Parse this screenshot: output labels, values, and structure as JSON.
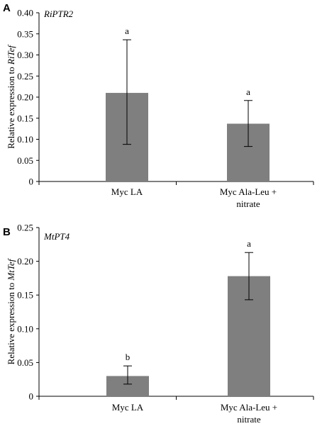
{
  "chart_data": [
    {
      "type": "bar",
      "panel_label": "A",
      "title": "RiPTR2",
      "ylabel_prefix": "Relative  expression  to ",
      "ylabel_gene": "RiTef",
      "categories": [
        [
          "Myc LA"
        ],
        [
          "Myc Ala-Leu  +",
          "nitrate"
        ]
      ],
      "values": [
        0.21,
        0.137
      ],
      "error_bars": [
        [
          0.088,
          0.336
        ],
        [
          0.083,
          0.192
        ]
      ],
      "significance": [
        "a",
        "a"
      ],
      "ylim": [
        0,
        0.4
      ],
      "yticks": [
        {
          "v": 0,
          "label": "0"
        },
        {
          "v": 0.05,
          "label": "0.05"
        },
        {
          "v": 0.1,
          "label": "0.10"
        },
        {
          "v": 0.15,
          "label": "0.15"
        },
        {
          "v": 0.2,
          "label": "0.20"
        },
        {
          "v": 0.25,
          "label": "0.25"
        },
        {
          "v": 0.3,
          "label": "0.30"
        },
        {
          "v": 0.35,
          "label": "0.35"
        },
        {
          "v": 0.4,
          "label": "0.40"
        }
      ],
      "grid": false,
      "bar_color": "#7f7f7f"
    },
    {
      "type": "bar",
      "panel_label": "B",
      "title": "MtPT4",
      "ylabel_prefix": "Relative  expression  to ",
      "ylabel_gene": "MtTef",
      "categories": [
        [
          "Myc LA"
        ],
        [
          "Myc Ala-Leu  +",
          "nitrate"
        ]
      ],
      "values": [
        0.03,
        0.178
      ],
      "error_bars": [
        [
          0.018,
          0.045
        ],
        [
          0.143,
          0.213
        ]
      ],
      "significance": [
        "b",
        "a"
      ],
      "ylim": [
        0,
        0.25
      ],
      "yticks": [
        {
          "v": 0,
          "label": "0"
        },
        {
          "v": 0.05,
          "label": "0.05"
        },
        {
          "v": 0.1,
          "label": "0.10"
        },
        {
          "v": 0.15,
          "label": "0.15"
        },
        {
          "v": 0.2,
          "label": "0.20"
        },
        {
          "v": 0.25,
          "label": "0.25"
        }
      ],
      "grid": false,
      "bar_color": "#7f7f7f"
    }
  ]
}
